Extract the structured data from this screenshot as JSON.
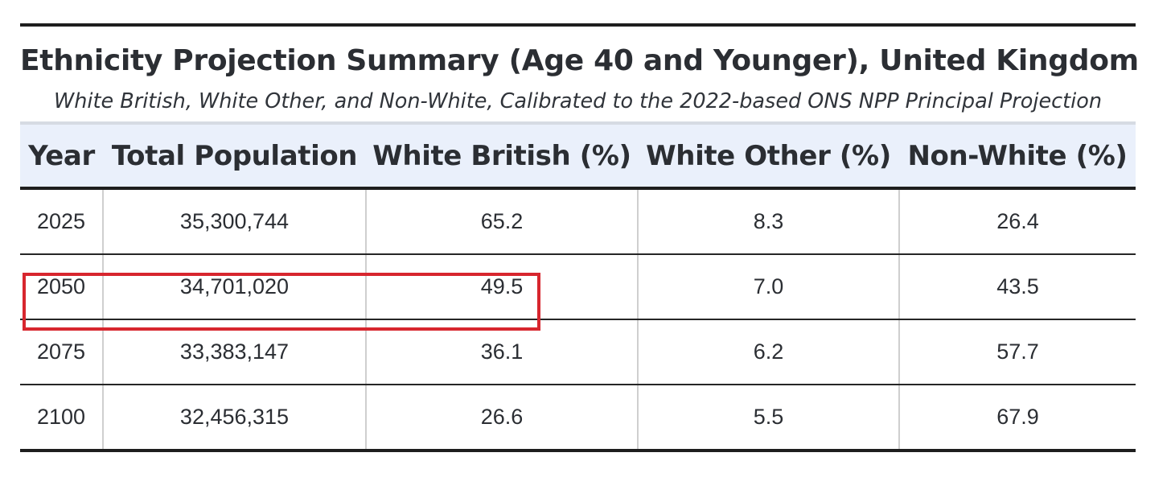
{
  "title": "Ethnicity Projection Summary (Age 40 and Younger), United Kingdom",
  "subtitle": "White British, White Other, and Non-White, Calibrated to the 2022-based ONS NPP Principal Projection",
  "table": {
    "headers": [
      "Year",
      "Total Population",
      "White British (%)",
      "White Other (%)",
      "Non-White (%)"
    ],
    "rows": [
      [
        "2025",
        "35,300,744",
        "65.2",
        "8.3",
        "26.4"
      ],
      [
        "2050",
        "34,701,020",
        "49.5",
        "7.0",
        "43.5"
      ],
      [
        "2075",
        "33,383,147",
        "36.1",
        "6.2",
        "57.7"
      ],
      [
        "2100",
        "32,456,315",
        "26.6",
        "5.5",
        "67.9"
      ]
    ]
  },
  "highlight": {
    "row": "2050",
    "columns": [
      "Year",
      "Total Population",
      "White British (%)"
    ],
    "color": "#d7262e"
  },
  "colors": {
    "header_background": "#eaf0fb",
    "rule": "#1e1e1e"
  }
}
